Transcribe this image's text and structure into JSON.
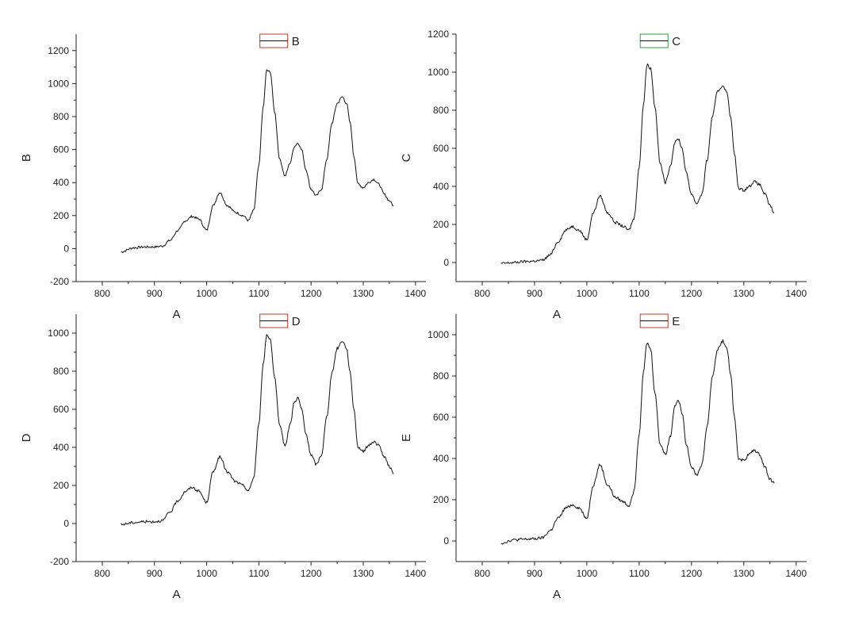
{
  "colors": {
    "line": "#111111",
    "axis": "#222222",
    "legend_red": "#c0392b",
    "legend_green": "#2e9e3e"
  },
  "chart_data": [
    {
      "id": "B",
      "type": "line",
      "title": "",
      "xlabel": "A",
      "ylabel": "B",
      "xlim": [
        750,
        1420
      ],
      "ylim": [
        -200,
        1300
      ],
      "xticks": [
        800,
        900,
        1000,
        1100,
        1200,
        1300,
        1400
      ],
      "yticks": [
        -200,
        0,
        200,
        400,
        600,
        800,
        1000,
        1200
      ],
      "legend": {
        "label": "B",
        "position": "top-center",
        "frame_color": "#c0392b"
      },
      "series": [
        {
          "name": "B",
          "x": [
            836,
            860,
            880,
            900,
            915,
            930,
            945,
            960,
            972,
            985,
            1000,
            1012,
            1025,
            1040,
            1055,
            1070,
            1080,
            1090,
            1100,
            1108,
            1115,
            1122,
            1130,
            1140,
            1150,
            1160,
            1168,
            1175,
            1182,
            1190,
            1200,
            1210,
            1220,
            1230,
            1240,
            1250,
            1260,
            1268,
            1275,
            1282,
            1290,
            1300,
            1310,
            1320,
            1330,
            1340,
            1350,
            1358
          ],
          "y": [
            -20,
            5,
            10,
            10,
            15,
            50,
            110,
            170,
            195,
            180,
            110,
            260,
            340,
            260,
            220,
            200,
            170,
            230,
            500,
            850,
            1080,
            1070,
            830,
            540,
            440,
            520,
            620,
            640,
            600,
            480,
            360,
            320,
            360,
            540,
            760,
            880,
            920,
            880,
            760,
            560,
            390,
            370,
            400,
            420,
            390,
            330,
            290,
            260
          ]
        }
      ]
    },
    {
      "id": "C",
      "type": "line",
      "title": "",
      "xlabel": "A",
      "ylabel": "C",
      "xlim": [
        750,
        1420
      ],
      "ylim": [
        -100,
        1200
      ],
      "xticks": [
        800,
        900,
        1000,
        1100,
        1200,
        1300,
        1400
      ],
      "yticks": [
        0,
        200,
        400,
        600,
        800,
        1000,
        1200
      ],
      "legend": {
        "label": "C",
        "position": "top-center",
        "frame_color": "#2e9e3e"
      },
      "series": [
        {
          "name": "C",
          "x": [
            836,
            860,
            880,
            900,
            915,
            930,
            945,
            960,
            972,
            985,
            1000,
            1012,
            1025,
            1040,
            1055,
            1070,
            1080,
            1090,
            1100,
            1108,
            1115,
            1122,
            1130,
            1140,
            1150,
            1160,
            1168,
            1175,
            1182,
            1190,
            1200,
            1210,
            1220,
            1230,
            1240,
            1250,
            1260,
            1268,
            1275,
            1282,
            1290,
            1300,
            1310,
            1320,
            1330,
            1340,
            1350,
            1358
          ],
          "y": [
            -5,
            0,
            5,
            8,
            12,
            40,
            110,
            170,
            190,
            170,
            120,
            260,
            350,
            260,
            210,
            190,
            170,
            230,
            500,
            830,
            1040,
            1020,
            820,
            520,
            420,
            510,
            630,
            650,
            600,
            470,
            360,
            310,
            360,
            540,
            770,
            900,
            930,
            890,
            760,
            570,
            390,
            380,
            400,
            425,
            410,
            360,
            300,
            260
          ]
        }
      ]
    },
    {
      "id": "D",
      "type": "line",
      "title": "",
      "xlabel": "A",
      "ylabel": "D",
      "xlim": [
        750,
        1420
      ],
      "ylim": [
        -200,
        1100
      ],
      "xticks": [
        800,
        900,
        1000,
        1100,
        1200,
        1300,
        1400
      ],
      "yticks": [
        -200,
        0,
        200,
        400,
        600,
        800,
        1000
      ],
      "legend": {
        "label": "D",
        "position": "top-center",
        "frame_color": "#c0392b"
      },
      "series": [
        {
          "name": "D",
          "x": [
            836,
            860,
            880,
            900,
            915,
            930,
            945,
            960,
            972,
            985,
            1000,
            1012,
            1025,
            1040,
            1055,
            1070,
            1080,
            1090,
            1100,
            1108,
            1115,
            1122,
            1130,
            1140,
            1150,
            1160,
            1168,
            1175,
            1182,
            1190,
            1200,
            1210,
            1220,
            1230,
            1240,
            1250,
            1260,
            1268,
            1275,
            1282,
            1290,
            1300,
            1310,
            1320,
            1330,
            1340,
            1350,
            1358
          ],
          "y": [
            -5,
            5,
            10,
            10,
            15,
            60,
            120,
            170,
            190,
            170,
            110,
            270,
            350,
            270,
            220,
            200,
            170,
            240,
            520,
            830,
            990,
            970,
            770,
            510,
            410,
            520,
            640,
            660,
            600,
            470,
            360,
            310,
            360,
            560,
            790,
            920,
            960,
            920,
            790,
            600,
            400,
            380,
            410,
            430,
            410,
            350,
            300,
            260
          ]
        }
      ]
    },
    {
      "id": "E",
      "type": "line",
      "title": "",
      "xlabel": "A",
      "ylabel": "E",
      "xlim": [
        750,
        1420
      ],
      "ylim": [
        -100,
        1100
      ],
      "xticks": [
        800,
        900,
        1000,
        1100,
        1200,
        1300,
        1400
      ],
      "yticks": [
        0,
        200,
        400,
        600,
        800,
        1000
      ],
      "legend": {
        "label": "E",
        "position": "top-center",
        "frame_color": "#c0392b"
      },
      "series": [
        {
          "name": "E",
          "x": [
            836,
            860,
            880,
            900,
            915,
            930,
            945,
            960,
            972,
            985,
            1000,
            1012,
            1025,
            1040,
            1055,
            1070,
            1080,
            1090,
            1100,
            1108,
            1115,
            1122,
            1130,
            1140,
            1150,
            1160,
            1168,
            1175,
            1182,
            1190,
            1200,
            1210,
            1220,
            1230,
            1240,
            1250,
            1260,
            1268,
            1275,
            1282,
            1290,
            1300,
            1310,
            1320,
            1330,
            1340,
            1350,
            1358
          ],
          "y": [
            -10,
            5,
            8,
            10,
            15,
            50,
            110,
            160,
            175,
            160,
            110,
            270,
            370,
            270,
            210,
            190,
            170,
            240,
            520,
            820,
            960,
            930,
            720,
            470,
            420,
            510,
            660,
            680,
            620,
            470,
            360,
            320,
            370,
            560,
            800,
            930,
            970,
            930,
            800,
            600,
            400,
            390,
            420,
            440,
            420,
            360,
            300,
            280
          ]
        }
      ]
    }
  ]
}
